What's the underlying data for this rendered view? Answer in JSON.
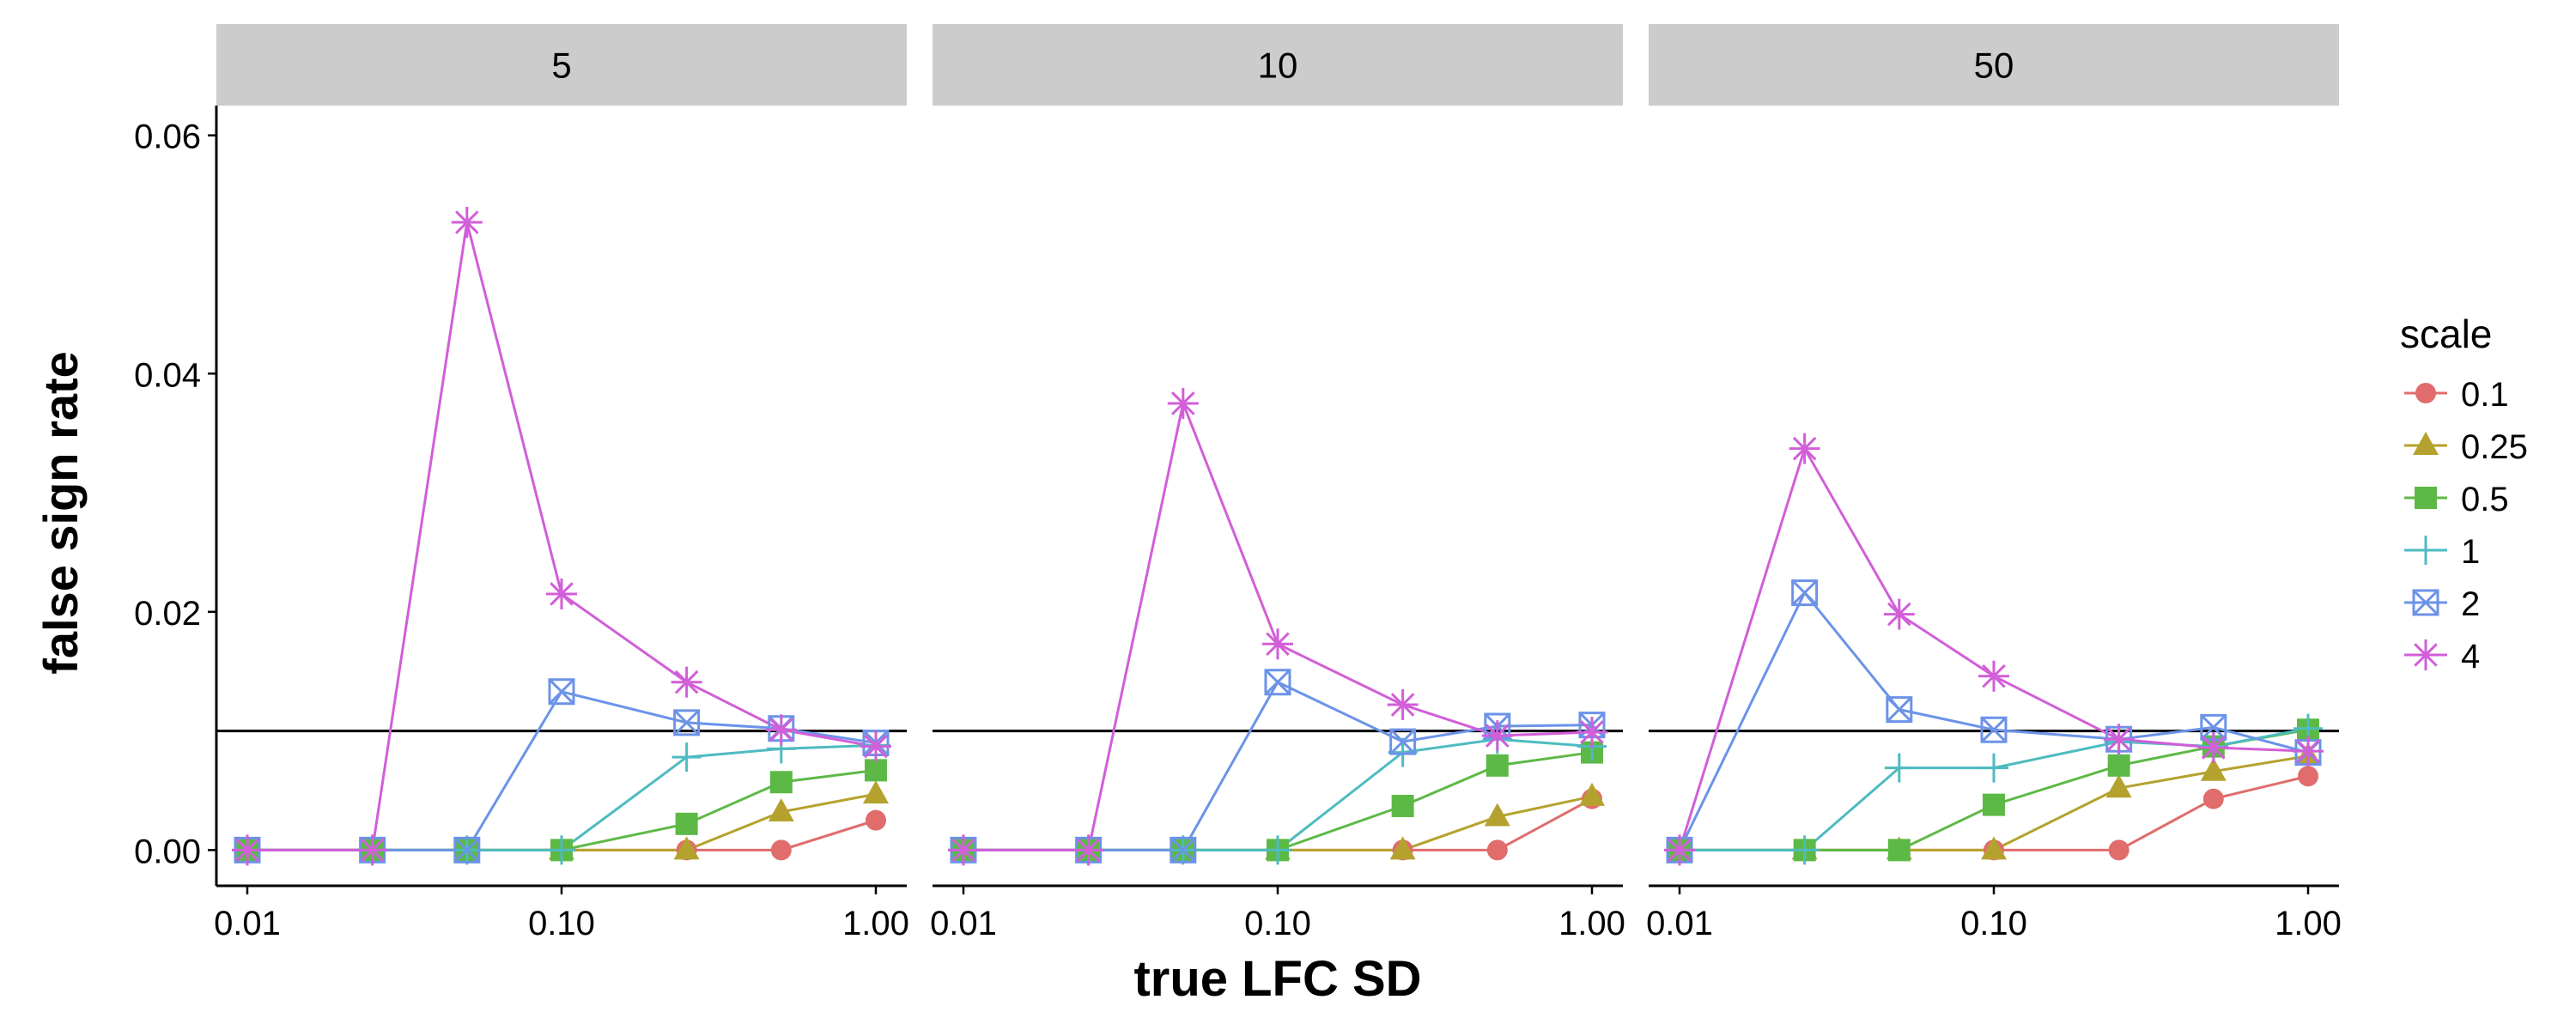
{
  "chart_data": {
    "type": "line",
    "xlabel": "true LFC SD",
    "ylabel": "false sign rate",
    "x_scale": "log10",
    "x_ticks": [
      0.01,
      0.1,
      1.0
    ],
    "x_tick_labels": [
      "0.01",
      "0.10",
      "1.00"
    ],
    "y_ticks": [
      0,
      0.02,
      0.04,
      0.06
    ],
    "y_tick_labels": [
      "0.00",
      "0.02",
      "0.04",
      "0.06"
    ],
    "ylim": [
      -0.003,
      0.0625
    ],
    "hline": 0.01,
    "x": [
      0.01,
      0.025,
      0.05,
      0.1,
      0.25,
      0.5,
      1.0
    ],
    "legend": {
      "title": "scale",
      "position": "right"
    },
    "panels": [
      {
        "label": "5",
        "series": [
          {
            "name": "0.1",
            "color": "#E06C6C",
            "marker": "circle",
            "values": [
              0,
              0,
              0,
              0,
              0,
              0,
              0.0025
            ]
          },
          {
            "name": "0.25",
            "color": "#B5A22E",
            "marker": "triangle",
            "values": [
              0,
              0,
              0,
              0,
              0,
              0.0032,
              0.0047
            ]
          },
          {
            "name": "0.5",
            "color": "#5DB946",
            "marker": "square",
            "values": [
              0,
              0,
              0,
              0,
              0.0022,
              0.0057,
              0.0067
            ]
          },
          {
            "name": "1",
            "color": "#4EBBC0",
            "marker": "plus",
            "values": [
              0,
              0,
              0,
              0,
              0.0078,
              0.0085,
              0.0088
            ]
          },
          {
            "name": "2",
            "color": "#6C93E8",
            "marker": "boxx",
            "values": [
              0,
              0,
              0,
              0.0133,
              0.0107,
              0.0102,
              0.009
            ]
          },
          {
            "name": "4",
            "color": "#D25ED8",
            "marker": "star",
            "values": [
              0,
              0,
              0.0527,
              0.0215,
              0.0141,
              0.0101,
              0.0087
            ]
          }
        ]
      },
      {
        "label": "10",
        "series": [
          {
            "name": "0.1",
            "color": "#E06C6C",
            "marker": "circle",
            "values": [
              0,
              0,
              0,
              0,
              0,
              0,
              0.0043
            ]
          },
          {
            "name": "0.25",
            "color": "#B5A22E",
            "marker": "triangle",
            "values": [
              0,
              0,
              0,
              0,
              0,
              0.0028,
              0.0045
            ]
          },
          {
            "name": "0.5",
            "color": "#5DB946",
            "marker": "square",
            "values": [
              0,
              0,
              0,
              0,
              0.0037,
              0.0071,
              0.0082
            ]
          },
          {
            "name": "1",
            "color": "#4EBBC0",
            "marker": "plus",
            "values": [
              0,
              0,
              0,
              0,
              0.0082,
              0.0093,
              0.0087
            ]
          },
          {
            "name": "2",
            "color": "#6C93E8",
            "marker": "boxx",
            "values": [
              0,
              0,
              0,
              0.0141,
              0.0091,
              0.0104,
              0.0105
            ]
          },
          {
            "name": "4",
            "color": "#D25ED8",
            "marker": "star",
            "values": [
              0,
              0,
              0.0375,
              0.0173,
              0.0122,
              0.0096,
              0.0099
            ]
          }
        ]
      },
      {
        "label": "50",
        "series": [
          {
            "name": "0.1",
            "color": "#E06C6C",
            "marker": "circle",
            "values": [
              0,
              0,
              0,
              0,
              0,
              0.0043,
              0.0062
            ]
          },
          {
            "name": "0.25",
            "color": "#B5A22E",
            "marker": "triangle",
            "values": [
              0,
              0,
              0,
              0,
              0.0052,
              0.0066,
              0.0079
            ]
          },
          {
            "name": "0.5",
            "color": "#5DB946",
            "marker": "square",
            "values": [
              0,
              0,
              0,
              0.0038,
              0.0071,
              0.0087,
              0.0101
            ]
          },
          {
            "name": "1",
            "color": "#4EBBC0",
            "marker": "plus",
            "values": [
              0,
              0,
              0.0069,
              0.0069,
              0.0091,
              0.0087,
              0.0102
            ]
          },
          {
            "name": "2",
            "color": "#6C93E8",
            "marker": "boxx",
            "values": [
              0,
              0.0216,
              0.0118,
              0.0101,
              0.0093,
              0.0103,
              0.0082
            ]
          },
          {
            "name": "4",
            "color": "#D25ED8",
            "marker": "star",
            "values": [
              0,
              0.0337,
              0.0198,
              0.0146,
              0.0093,
              0.0086,
              0.0083
            ]
          }
        ]
      }
    ]
  }
}
